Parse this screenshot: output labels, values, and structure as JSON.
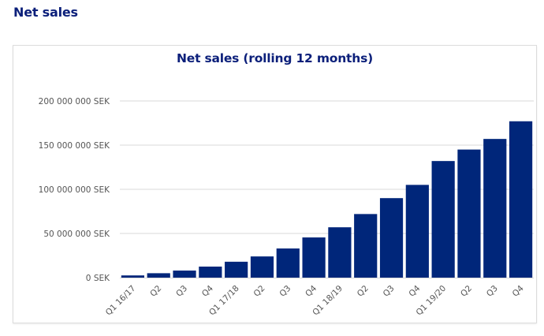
{
  "page": {
    "title": "Net sales"
  },
  "chart_data": {
    "type": "bar",
    "title": "Net sales (rolling 12 months)",
    "xlabel": "",
    "ylabel": "",
    "ylim": [
      0,
      200000000
    ],
    "y_ticks": [
      0,
      50000000,
      100000000,
      150000000,
      200000000
    ],
    "y_tick_labels": [
      "0 SEK",
      "50 000 000 SEK",
      "100 000 000 SEK",
      "150 000 000 SEK",
      "200 000 000 SEK"
    ],
    "grid": true,
    "legend": null,
    "bar_color": "#00267a",
    "categories": [
      "Q1 16/17",
      "Q2",
      "Q3",
      "Q4",
      "Q1 17/18",
      "Q2",
      "Q3",
      "Q4",
      "Q1 18/19",
      "Q2",
      "Q3",
      "Q4",
      "Q1 19/20",
      "Q2",
      "Q3",
      "Q4"
    ],
    "values": [
      2500000,
      5000000,
      8000000,
      12500000,
      18000000,
      24000000,
      33000000,
      45500000,
      57000000,
      72000000,
      90000000,
      105000000,
      132000000,
      145000000,
      157000000,
      177000000
    ]
  }
}
